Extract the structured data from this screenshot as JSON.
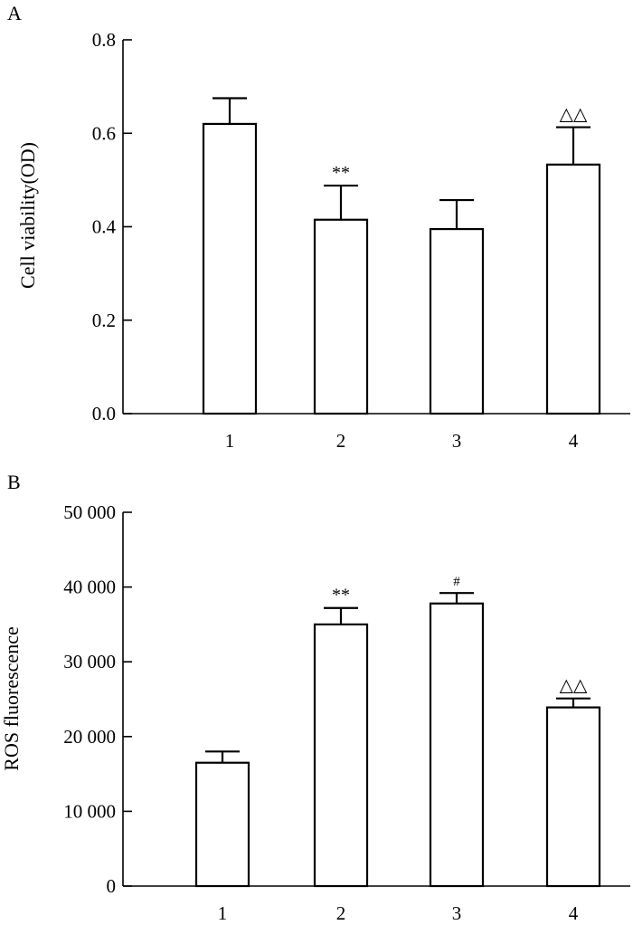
{
  "chart_data": [
    {
      "type": "bar",
      "panel_label": "A",
      "title": "",
      "xlabel": "",
      "ylabel": "Cell viability(OD)",
      "categories": [
        "1",
        "2",
        "3",
        "4"
      ],
      "values": [
        0.62,
        0.415,
        0.395,
        0.533
      ],
      "errors": [
        0.055,
        0.073,
        0.062,
        0.08
      ],
      "annotations": [
        "",
        "**",
        "",
        "△△"
      ],
      "ylim": [
        0.0,
        0.8
      ],
      "yticks": [
        0.0,
        0.2,
        0.4,
        0.6,
        0.8
      ],
      "ytick_labels": [
        "0.0",
        "0.2",
        "0.4",
        "0.6",
        "0.8"
      ],
      "grid": false,
      "legend": "none"
    },
    {
      "type": "bar",
      "panel_label": "B",
      "title": "",
      "xlabel": "",
      "ylabel": "ROS fluorescence",
      "categories": [
        "1",
        "2",
        "3",
        "4"
      ],
      "values": [
        16500,
        35000,
        37800,
        23900
      ],
      "errors": [
        1500,
        2200,
        1400,
        1200
      ],
      "annotations": [
        "",
        "**",
        "#",
        "△△"
      ],
      "ylim": [
        0,
        50000
      ],
      "yticks": [
        0,
        10000,
        20000,
        30000,
        40000,
        50000
      ],
      "ytick_labels": [
        "0",
        "10 000",
        "20 000",
        "30 000",
        "40 000",
        "50 000"
      ],
      "grid": false,
      "legend": "none"
    }
  ]
}
